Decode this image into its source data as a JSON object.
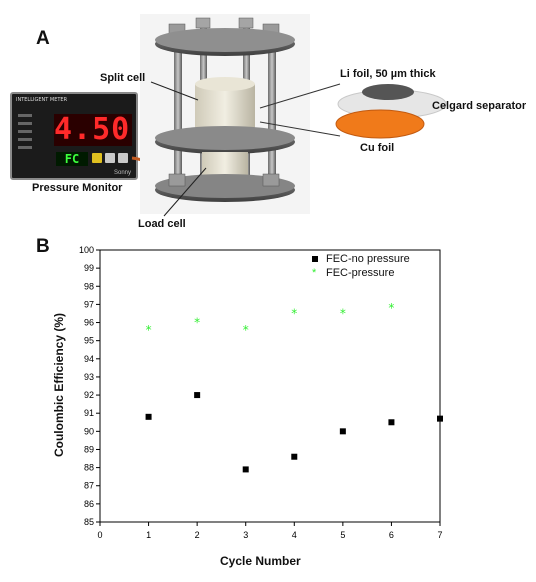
{
  "panel_a": {
    "letter": "A",
    "labels": {
      "split_cell": "Split cell",
      "li_foil": "Li foil, 50 µm thick",
      "separator": "Celgard separator",
      "cu_foil": "Cu foil",
      "pressure_monitor": "Pressure Monitor",
      "load_cell": "Load cell"
    },
    "meter": {
      "header": "INTELLIGENT METER",
      "display_value": "4.50",
      "sub_display": "FC",
      "brand": "Sonny"
    },
    "colors": {
      "li_foil": "#555555",
      "separator": "#e6e6e6",
      "cu_foil": "#f07a1a",
      "meter_digits": "#ff2a2a",
      "meter_sub_digits": "#3cff3c"
    }
  },
  "panel_b": {
    "letter": "B"
  },
  "chart_data": {
    "type": "scatter",
    "xlabel": "Cycle Number",
    "ylabel": "Coulombic Efficiency (%)",
    "xlim": [
      0,
      7
    ],
    "ylim": [
      85,
      100
    ],
    "xticks": [
      0,
      1,
      2,
      3,
      4,
      5,
      6,
      7
    ],
    "yticks": [
      85,
      86,
      87,
      88,
      89,
      90,
      91,
      92,
      93,
      94,
      95,
      96,
      97,
      98,
      99,
      100
    ],
    "legend_position": "top-right",
    "series": [
      {
        "name": "FEC-no pressure",
        "marker": "square",
        "color": "#000000",
        "x": [
          1,
          2,
          3,
          4,
          5,
          6,
          7
        ],
        "y": [
          90.8,
          92.0,
          87.9,
          88.6,
          90.0,
          90.5,
          90.7
        ]
      },
      {
        "name": "FEC-pressure",
        "marker": "star",
        "color": "#33ee33",
        "x": [
          1,
          2,
          3,
          4,
          5,
          6
        ],
        "y": [
          95.6,
          96.0,
          95.6,
          96.5,
          96.5,
          96.8
        ]
      }
    ]
  }
}
